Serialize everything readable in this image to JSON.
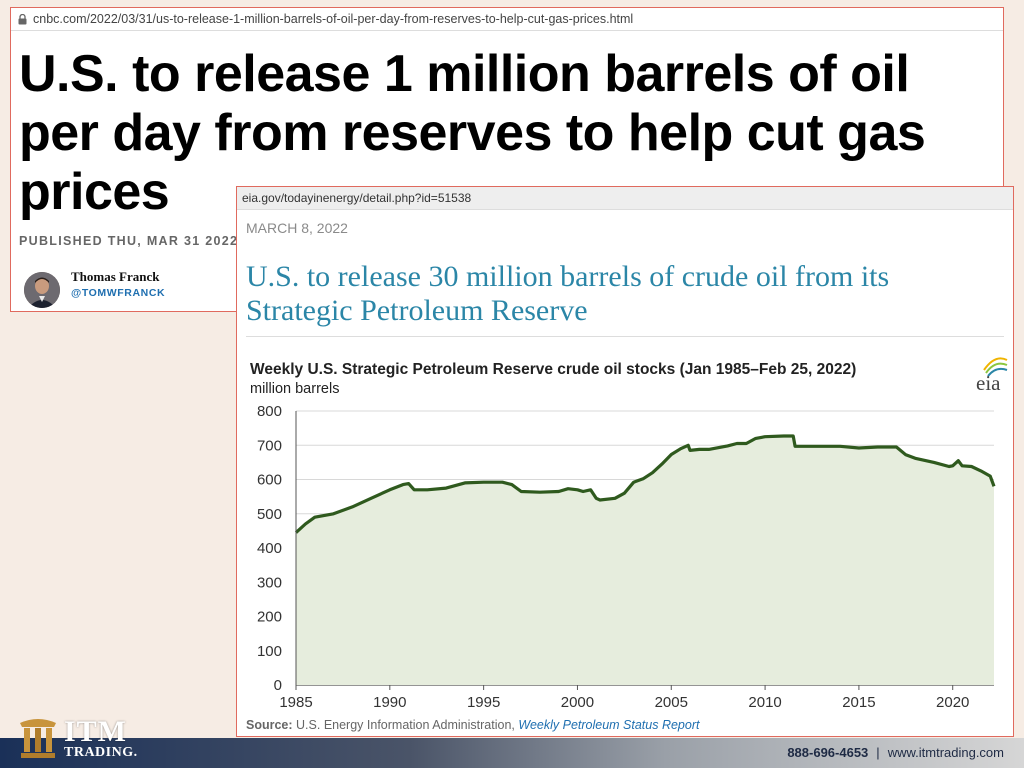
{
  "cnbc": {
    "url": "cnbc.com/2022/03/31/us-to-release-1-million-barrels-of-oil-per-day-from-reserves-to-help-cut-gas-prices.html",
    "headline_line1": "U.S. to release 1 million barrels of oil",
    "headline_line2": "per day from reserves to help cut gas",
    "headline_line3": "prices",
    "published": "PUBLISHED THU, MAR 31 2022",
    "author": "Thomas Franck",
    "handle": "@TOMWFRANCK"
  },
  "eia": {
    "url": "eia.gov/todayinenergy/detail.php?id=51538",
    "date": "MARCH 8, 2022",
    "headline_line1": "U.S. to release 30 million barrels of crude oil from its",
    "headline_line2": "Strategic Petroleum Reserve",
    "logo_text": "eia",
    "source_label": "Source:",
    "source_org": "U.S. Energy Information Administration,",
    "source_link": "Weekly Petroleum Status Report"
  },
  "chart_data": {
    "type": "area",
    "title": "Weekly U.S. Strategic Petroleum Reserve crude oil stocks (Jan 1985–Feb 25, 2022)",
    "ylabel": "million barrels",
    "ylim": [
      0,
      800
    ],
    "xlim": [
      1985,
      2022.2
    ],
    "yticks": [
      0,
      100,
      200,
      300,
      400,
      500,
      600,
      700,
      800
    ],
    "xticks": [
      1985,
      1990,
      1995,
      2000,
      2005,
      2010,
      2015,
      2020
    ],
    "grid": "horizontal",
    "line_color": "#2f5a1e",
    "fill_color": "#e6eddd",
    "series": [
      {
        "x": [
          1985.0,
          1985.5,
          1986.0,
          1987.0,
          1988.0,
          1989.0,
          1990.0,
          1990.7,
          1991.0,
          1991.3,
          1992.0,
          1993.0,
          1994.0,
          1995.0,
          1996.0,
          1996.5,
          1997.0,
          1998.0,
          1999.0,
          1999.5,
          2000.0,
          2000.3,
          2000.7,
          2001.0,
          2001.2,
          2002.0,
          2002.5,
          2003.0,
          2003.5,
          2004.0,
          2004.5,
          2005.0,
          2005.5,
          2005.9,
          2006.0,
          2006.5,
          2007.0,
          2008.0,
          2008.5,
          2009.0,
          2009.5,
          2010.0,
          2011.0,
          2011.5,
          2011.6,
          2013.0,
          2014.0,
          2015.0,
          2016.0,
          2017.0,
          2017.5,
          2018.0,
          2019.0,
          2019.8,
          2020.0,
          2020.3,
          2020.5,
          2021.0,
          2021.5,
          2022.0,
          2022.2
        ],
        "y": [
          445,
          470,
          490,
          500,
          520,
          545,
          570,
          585,
          588,
          570,
          570,
          575,
          590,
          592,
          592,
          585,
          565,
          563,
          565,
          573,
          570,
          565,
          570,
          545,
          540,
          545,
          560,
          592,
          602,
          620,
          645,
          673,
          690,
          700,
          685,
          688,
          688,
          698,
          705,
          705,
          720,
          725,
          727,
          727,
          697,
          697,
          697,
          692,
          695,
          695,
          672,
          662,
          650,
          638,
          640,
          655,
          640,
          638,
          625,
          610,
          580
        ]
      }
    ]
  }
}
